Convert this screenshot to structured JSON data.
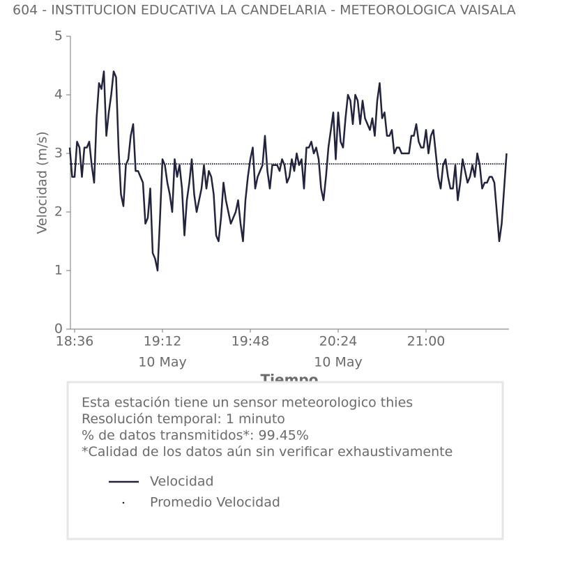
{
  "chart_data": {
    "type": "line",
    "title": "604 - INSTITUCION EDUCATIVA LA CANDELARIA - METEOROLOGICA VAISALA",
    "x_label": "Tiempo",
    "y_label": "Velocidad (m/s)",
    "x": [
      "18:34",
      "18:35",
      "18:36",
      "18:37",
      "18:38",
      "18:39",
      "18:40",
      "18:41",
      "18:42",
      "18:43",
      "18:44",
      "18:45",
      "18:46",
      "18:47",
      "18:48",
      "18:49",
      "18:50",
      "18:51",
      "18:52",
      "18:53",
      "18:54",
      "18:55",
      "18:56",
      "18:57",
      "18:58",
      "18:59",
      "19:00",
      "19:01",
      "19:02",
      "19:03",
      "19:04",
      "19:05",
      "19:06",
      "19:07",
      "19:08",
      "19:09",
      "19:10",
      "19:11",
      "19:12",
      "19:13",
      "19:14",
      "19:15",
      "19:16",
      "19:17",
      "19:18",
      "19:19",
      "19:20",
      "19:21",
      "19:22",
      "19:23",
      "19:24",
      "19:25",
      "19:26",
      "19:27",
      "19:28",
      "19:29",
      "19:30",
      "19:31",
      "19:32",
      "19:33",
      "19:34",
      "19:35",
      "19:36",
      "19:37",
      "19:38",
      "19:39",
      "19:40",
      "19:41",
      "19:42",
      "19:43",
      "19:44",
      "19:45",
      "19:46",
      "19:47",
      "19:48",
      "19:49",
      "19:50",
      "19:51",
      "19:52",
      "19:53",
      "19:54",
      "19:55",
      "19:56",
      "19:57",
      "19:58",
      "19:59",
      "20:00",
      "20:01",
      "20:02",
      "20:03",
      "20:04",
      "20:05",
      "20:06",
      "20:07",
      "20:08",
      "20:09",
      "20:10",
      "20:11",
      "20:12",
      "20:13",
      "20:14",
      "20:15",
      "20:16",
      "20:17",
      "20:18",
      "20:19",
      "20:20",
      "20:21",
      "20:22",
      "20:23",
      "20:24",
      "20:25",
      "20:26",
      "20:27",
      "20:28",
      "20:29",
      "20:30",
      "20:31",
      "20:32",
      "20:33",
      "20:34",
      "20:35",
      "20:36",
      "20:37",
      "20:38",
      "20:39",
      "20:40",
      "20:41",
      "20:42",
      "20:43",
      "20:44",
      "20:45",
      "20:46",
      "20:47",
      "20:48",
      "20:49",
      "20:50",
      "20:51",
      "20:52",
      "20:53",
      "20:54",
      "20:55",
      "20:56",
      "20:57",
      "20:58",
      "20:59",
      "21:00",
      "21:01",
      "21:02",
      "21:03",
      "21:04",
      "21:05",
      "21:06",
      "21:07",
      "21:08",
      "21:09",
      "21:10",
      "21:11",
      "21:12",
      "21:13",
      "21:14",
      "21:15",
      "21:16",
      "21:17",
      "21:18",
      "21:19",
      "21:20",
      "21:21",
      "21:22",
      "21:23",
      "21:24",
      "21:25",
      "21:26",
      "21:27",
      "21:28",
      "21:29",
      "21:30",
      "21:31",
      "21:32",
      "21:33"
    ],
    "series": [
      {
        "name": "Velocidad",
        "color": "#22233f",
        "values": [
          3.1,
          2.6,
          2.6,
          3.2,
          3.1,
          2.6,
          3.1,
          3.1,
          3.2,
          2.8,
          2.5,
          3.6,
          4.2,
          4.1,
          4.4,
          3.3,
          3.7,
          4.0,
          4.4,
          4.3,
          3.1,
          2.3,
          2.1,
          2.8,
          2.9,
          3.3,
          3.5,
          2.7,
          2.7,
          2.6,
          2.5,
          1.8,
          1.9,
          2.4,
          1.3,
          1.2,
          1.0,
          1.9,
          2.9,
          2.8,
          2.5,
          2.3,
          2.0,
          2.9,
          2.6,
          2.8,
          2.4,
          1.6,
          2.2,
          2.5,
          2.9,
          2.3,
          2.0,
          2.2,
          2.4,
          2.8,
          2.4,
          2.7,
          2.6,
          2.3,
          1.6,
          1.5,
          1.9,
          2.5,
          2.2,
          2.0,
          1.8,
          1.9,
          2.0,
          2.2,
          1.8,
          1.5,
          2.2,
          2.6,
          2.9,
          3.1,
          2.4,
          2.6,
          2.7,
          2.8,
          3.3,
          2.7,
          2.4,
          2.8,
          2.8,
          2.8,
          2.7,
          2.9,
          2.8,
          2.5,
          2.6,
          2.9,
          2.7,
          3.0,
          2.8,
          2.9,
          2.4,
          3.1,
          3.1,
          3.2,
          3.0,
          3.1,
          2.9,
          2.4,
          2.2,
          2.6,
          3.1,
          3.4,
          3.7,
          2.9,
          3.7,
          3.2,
          3.1,
          3.6,
          4.0,
          3.9,
          3.5,
          4.0,
          3.9,
          3.5,
          3.9,
          3.6,
          3.5,
          3.4,
          3.6,
          3.3,
          3.9,
          4.2,
          3.6,
          3.7,
          3.3,
          3.3,
          3.4,
          3.0,
          3.1,
          3.1,
          3.0,
          3.0,
          3.0,
          3.0,
          3.3,
          3.3,
          3.5,
          3.2,
          3.1,
          3.1,
          3.4,
          3.0,
          3.3,
          3.4,
          3.0,
          2.6,
          2.4,
          2.8,
          2.9,
          2.6,
          2.4,
          2.4,
          2.8,
          2.2,
          2.5,
          2.9,
          2.7,
          2.5,
          2.6,
          2.8,
          2.6,
          3.0,
          2.8,
          2.4,
          2.5,
          2.5,
          2.6,
          2.6,
          2.5,
          2.0,
          1.5,
          1.8,
          2.4,
          3.0
        ]
      }
    ],
    "reference": {
      "name": "Promedio Velocidad",
      "value": 2.82,
      "color": "#22233f",
      "style": "dotted"
    },
    "xlim": [
      "18:34",
      "21:34"
    ],
    "xticks": [
      "18:36",
      "19:12",
      "19:48",
      "20:24",
      "21:00"
    ],
    "xtick_sublabels": [
      null,
      "10 May",
      null,
      "10 May",
      null
    ],
    "ylim": [
      0,
      5
    ],
    "yticks": [
      0,
      1,
      2,
      3,
      4,
      5
    ],
    "grid": false
  },
  "info": {
    "lines": [
      "Esta estación tiene un sensor meteorologico thies",
      "Resolución temporal: 1 minuto",
      "% de datos transmitidos*: 99.45%",
      "*Calidad de los datos aún sin verificar exhaustivamente"
    ]
  }
}
